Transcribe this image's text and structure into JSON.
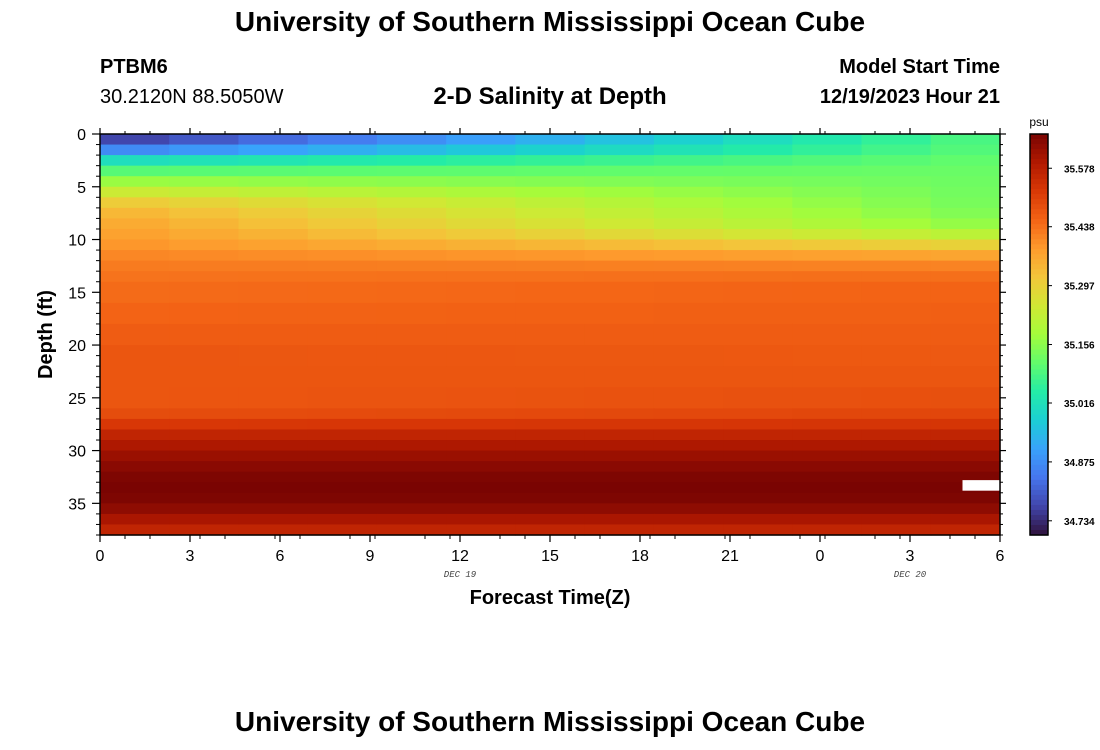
{
  "page": {
    "title_top": "University of Southern Mississippi Ocean Cube",
    "title_bottom": "University of Southern Mississippi Ocean Cube",
    "station_id": "PTBM6",
    "station_coords": "30.2120N  88.5050W",
    "subtitle": "2-D Salinity at Depth",
    "model_start_label": "Model Start Time",
    "model_start_value": "12/19/2023 Hour 21"
  },
  "chart_data": {
    "type": "heatmap",
    "title": "2-D Salinity at Depth",
    "xlabel": "Forecast Time(Z)",
    "ylabel": "Depth (ft)",
    "x_tick_labels": [
      "0",
      "3",
      "6",
      "9",
      "12",
      "15",
      "18",
      "21",
      "0",
      "3",
      "6"
    ],
    "x_date_labels": [
      {
        "label": "DEC 19",
        "at_tick": 4
      },
      {
        "label": "DEC 20",
        "at_tick": 9
      }
    ],
    "x_range_hours": [
      0,
      36
    ],
    "y_tick_labels": [
      "0",
      "5",
      "10",
      "15",
      "20",
      "25",
      "30",
      "35"
    ],
    "y_range_ft": [
      0,
      38
    ],
    "colorbar": {
      "unit": "psu",
      "tick_labels": [
        "35.578",
        "35.438",
        "35.297",
        "35.156",
        "35.016",
        "34.875",
        "34.734"
      ],
      "tick_values": [
        35.578,
        35.438,
        35.297,
        35.156,
        35.016,
        34.875,
        34.734
      ],
      "range": [
        34.7,
        35.66
      ],
      "colormap": [
        "#30123b",
        "#4145ab",
        "#4675ed",
        "#39a2fc",
        "#1bcfd4",
        "#24eca6",
        "#61fc6c",
        "#a4fc3b",
        "#d1e834",
        "#f3c63a",
        "#fe9b2d",
        "#f36315",
        "#d93806",
        "#b11901",
        "#7a0402"
      ]
    },
    "time_columns": 13,
    "depth_profiles": [
      {
        "depth": 0,
        "start": 34.76,
        "end": 35.08
      },
      {
        "depth": 1,
        "start": 34.78,
        "end": 35.09
      },
      {
        "depth": 2,
        "start": 34.96,
        "end": 35.1
      },
      {
        "depth": 3,
        "start": 35.06,
        "end": 35.12
      },
      {
        "depth": 4,
        "start": 35.14,
        "end": 35.12
      },
      {
        "depth": 5,
        "start": 35.2,
        "end": 35.13
      },
      {
        "depth": 6,
        "start": 35.28,
        "end": 35.13
      },
      {
        "depth": 7,
        "start": 35.33,
        "end": 35.14
      },
      {
        "depth": 8,
        "start": 35.35,
        "end": 35.15
      },
      {
        "depth": 9,
        "start": 35.37,
        "end": 35.18
      },
      {
        "depth": 10,
        "start": 35.38,
        "end": 35.25
      },
      {
        "depth": 11,
        "start": 35.4,
        "end": 35.34
      },
      {
        "depth": 12,
        "start": 35.42,
        "end": 35.4
      },
      {
        "depth": 13,
        "start": 35.43,
        "end": 35.43
      },
      {
        "depth": 14,
        "start": 35.44,
        "end": 35.45
      },
      {
        "depth": 16,
        "start": 35.45,
        "end": 35.46
      },
      {
        "depth": 18,
        "start": 35.46,
        "end": 35.46
      },
      {
        "depth": 20,
        "start": 35.47,
        "end": 35.47
      },
      {
        "depth": 22,
        "start": 35.48,
        "end": 35.47
      },
      {
        "depth": 24,
        "start": 35.47,
        "end": 35.48
      },
      {
        "depth": 26,
        "start": 35.48,
        "end": 35.49
      },
      {
        "depth": 27,
        "start": 35.5,
        "end": 35.51
      },
      {
        "depth": 28,
        "start": 35.55,
        "end": 35.55
      },
      {
        "depth": 29,
        "start": 35.58,
        "end": 35.58
      },
      {
        "depth": 30,
        "start": 35.61,
        "end": 35.61
      },
      {
        "depth": 31,
        "start": 35.63,
        "end": 35.63
      },
      {
        "depth": 32,
        "start": 35.65,
        "end": 35.65
      },
      {
        "depth": 33,
        "start": 35.66,
        "end": 35.66
      },
      {
        "depth": 34,
        "start": 35.66,
        "end": 35.66
      },
      {
        "depth": 35,
        "start": 35.65,
        "end": 35.65
      },
      {
        "depth": 36,
        "start": 35.62,
        "end": 35.62
      },
      {
        "depth": 37,
        "start": 35.58,
        "end": 35.58
      },
      {
        "depth": 38,
        "start": 35.55,
        "end": 35.55
      }
    ],
    "missing_cell": {
      "depth_from": 32.8,
      "depth_to": 33.8,
      "time_from": 34.5,
      "time_to": 36
    }
  }
}
